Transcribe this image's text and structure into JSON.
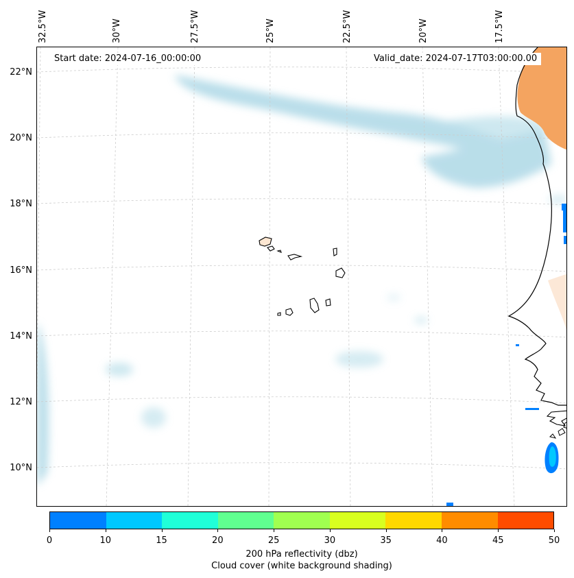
{
  "title": {
    "start_date": "Start date: 2024-07-16_00:00:00",
    "valid_date": "Valid_date: 2024-07-17T03:00:00.00"
  },
  "axes": {
    "longitude_labels": [
      "32.5°W",
      "30°W",
      "27.5°W",
      "25°W",
      "22.5°W",
      "20°W",
      "17.5°W"
    ],
    "latitude_labels": [
      "22°N",
      "20°N",
      "18°N",
      "16°N",
      "14°N",
      "12°N",
      "10°N"
    ]
  },
  "colorbar": {
    "ticks": [
      "0",
      "10",
      "15",
      "20",
      "25",
      "30",
      "35",
      "40",
      "45",
      "50"
    ],
    "colors": [
      "#0080ff",
      "#00c8ff",
      "#20ffd8",
      "#60ff90",
      "#a0ff50",
      "#d8ff20",
      "#ffd800",
      "#ff8c00",
      "#ff4c00"
    ],
    "label_line1": "200 hPa reflectivity (dbz)",
    "label_line2": "Cloud cover (white background shading)"
  },
  "map": {
    "cloud_color": "#add8e6",
    "land_color": "#f4a460",
    "coast_color": "#000000",
    "grid_color": "#cccccc"
  }
}
